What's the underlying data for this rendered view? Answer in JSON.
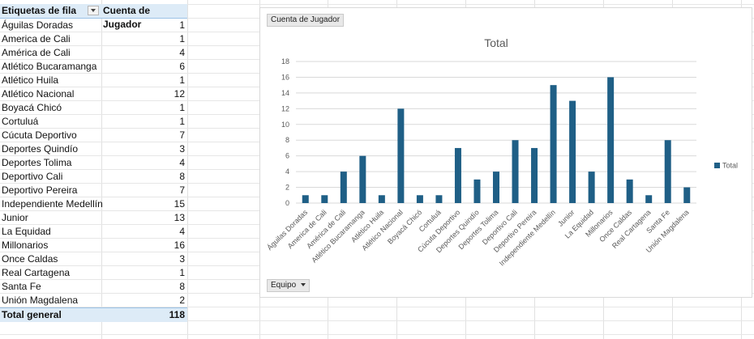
{
  "pivot": {
    "header_row_label": "Etiquetas de fila",
    "header_value_label": "Cuenta de Jugador",
    "rows": [
      {
        "label": "Águilas Doradas",
        "value": "1"
      },
      {
        "label": "America de Cali",
        "value": "1"
      },
      {
        "label": "América de Cali",
        "value": "4"
      },
      {
        "label": "Atlético Bucaramanga",
        "value": "6"
      },
      {
        "label": "Atlético Huila",
        "value": "1"
      },
      {
        "label": "Atlético Nacional",
        "value": "12"
      },
      {
        "label": "Boyacá Chicó",
        "value": "1"
      },
      {
        "label": "Cortuluá",
        "value": "1"
      },
      {
        "label": "Cúcuta Deportivo",
        "value": "7"
      },
      {
        "label": "Deportes Quindío",
        "value": "3"
      },
      {
        "label": "Deportes Tolima",
        "value": "4"
      },
      {
        "label": "Deportivo Cali",
        "value": "8"
      },
      {
        "label": "Deportivo Pereira",
        "value": "7"
      },
      {
        "label": "Independiente Medellín",
        "value": "15"
      },
      {
        "label": "Junior",
        "value": "13"
      },
      {
        "label": "La Equidad",
        "value": "4"
      },
      {
        "label": "Millonarios",
        "value": "16"
      },
      {
        "label": "Once Caldas",
        "value": "3"
      },
      {
        "label": "Real Cartagena",
        "value": "1"
      },
      {
        "label": "Santa Fe",
        "value": "8"
      },
      {
        "label": "Unión Magdalena",
        "value": "2"
      }
    ],
    "total_label": "Total general",
    "total_value": "118"
  },
  "chart_buttons": {
    "value_field": "Cuenta de Jugador",
    "axis_field": "Equipo"
  },
  "chart_data": {
    "type": "bar",
    "title": "Total",
    "categories": [
      "Águilas Doradas",
      "America de Cali",
      "América de Cali",
      "Atlético Bucaramanga",
      "Atlético Huila",
      "Atlético Nacional",
      "Boyacá Chicó",
      "Cortuluá",
      "Cúcuta Deportivo",
      "Deportes Quindío",
      "Deportes Tolima",
      "Deportivo Cali",
      "Deportivo Pereira",
      "Independiente Medellín",
      "Junior",
      "La Equidad",
      "Millonarios",
      "Once Caldas",
      "Real Cartagena",
      "Santa Fe",
      "Unión Magdalena"
    ],
    "series": [
      {
        "name": "Total",
        "values": [
          1,
          1,
          4,
          6,
          1,
          12,
          1,
          1,
          7,
          3,
          4,
          8,
          7,
          15,
          13,
          4,
          16,
          3,
          1,
          8,
          2
        ],
        "color": "#1f5f86"
      }
    ],
    "ylim": [
      0,
      18
    ],
    "yticks": [
      0,
      2,
      4,
      6,
      8,
      10,
      12,
      14,
      16,
      18
    ],
    "grid": true,
    "legend": "right"
  }
}
